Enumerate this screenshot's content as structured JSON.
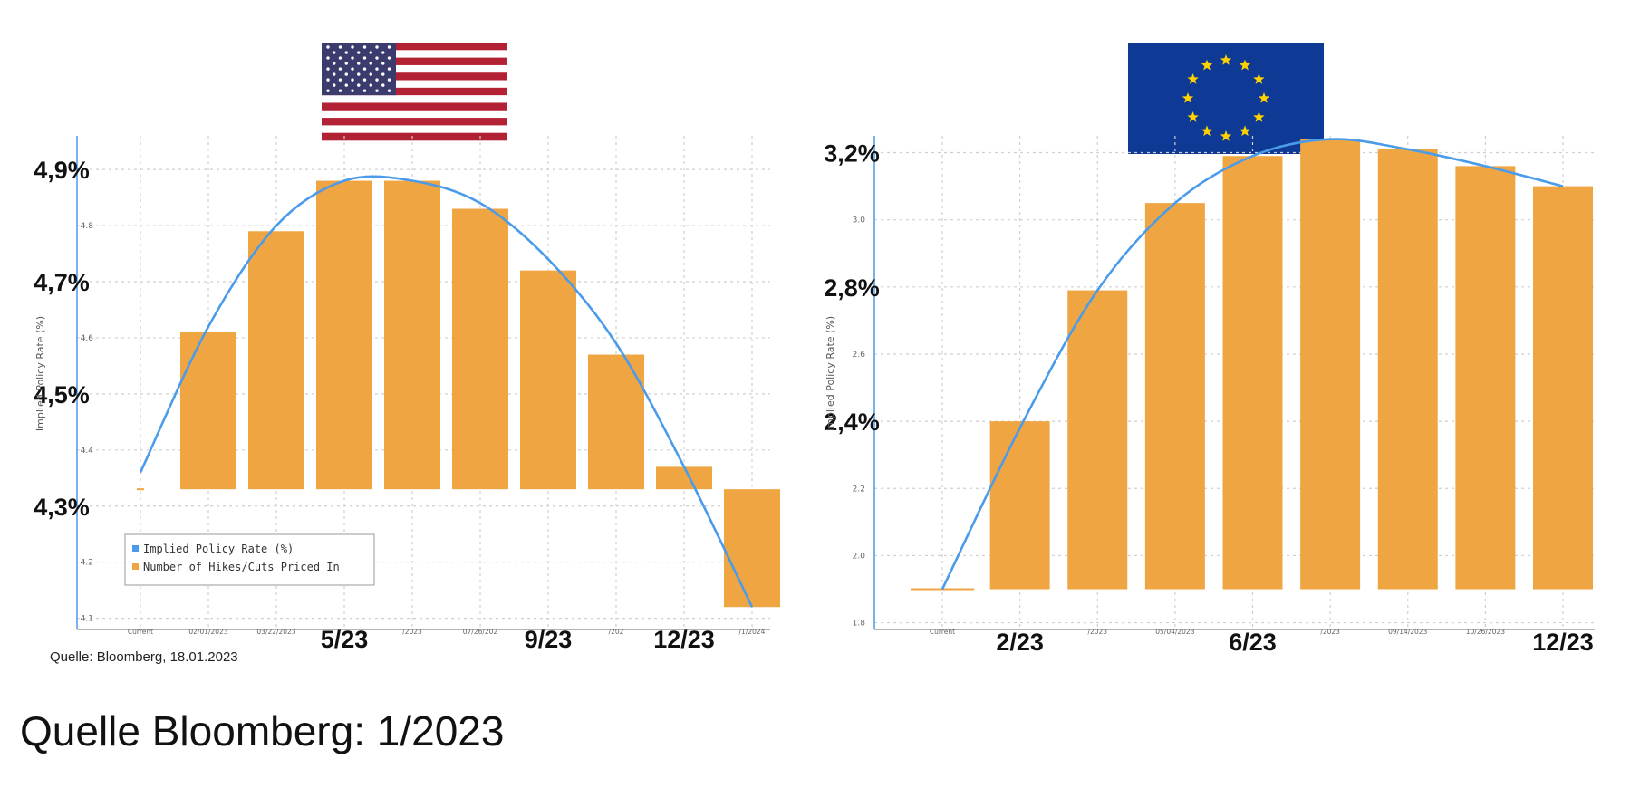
{
  "caption": "Quelle Bloomberg: 1/2023",
  "colors": {
    "bar": "#F0A543",
    "line": "#4A9BEA",
    "grid": "#cfcfcf",
    "axis": "#4A9BEA"
  },
  "chart_data": [
    {
      "type": "bar",
      "flag": "us-flag-icon",
      "source": "Quelle: Bloomberg, 18.01.2023",
      "ylabel": "Implied Policy Rate (%)",
      "ylim": [
        4.08,
        4.96
      ],
      "yticks_small": [
        "4.8",
        "4.6",
        "4.4",
        "4.2",
        "4.1"
      ],
      "yticks_big": [
        "4,9%",
        "4,7%",
        "4,5%",
        "4,3%"
      ],
      "categories": [
        "Current",
        "02/01/2023",
        "03/22/2023",
        "5/23",
        "/2023",
        "07/26/202",
        "9/23",
        "/202",
        "12/23",
        "/1/2024"
      ],
      "categories_big": [
        "5/23",
        "9/23",
        "12/23"
      ],
      "bar_base": 4.33,
      "bars": [
        null,
        4.61,
        4.79,
        4.88,
        4.88,
        4.83,
        4.72,
        4.57,
        4.37,
        4.12
      ],
      "line": [
        4.36,
        4.62,
        4.8,
        4.88,
        4.88,
        4.84,
        4.74,
        4.59,
        4.37,
        4.12
      ],
      "legend": [
        "Implied Policy Rate (%)",
        "Number of Hikes/Cuts Priced In"
      ]
    },
    {
      "type": "bar",
      "flag": "eu-flag-icon",
      "ylabel": "Implied Policy Rate (%)",
      "ylim": [
        1.78,
        3.25
      ],
      "yticks_small": [
        "3.0",
        "2.6",
        "2.2",
        "2.0",
        "1.8"
      ],
      "yticks_big": [
        "3,2%",
        "2,8%",
        "2,4%"
      ],
      "categories": [
        "Current",
        "2/23",
        "/2023",
        "05/04/2023",
        "6/23",
        "/2023",
        "09/14/2023",
        "10/26/2023",
        "12/23"
      ],
      "categories_big": [
        "2/23",
        "6/23",
        "12/23"
      ],
      "bar_base": 1.9,
      "bars": [
        null,
        2.4,
        2.79,
        3.05,
        3.19,
        3.24,
        3.21,
        3.16,
        3.1
      ],
      "line": [
        1.9,
        2.38,
        2.79,
        3.05,
        3.19,
        3.24,
        3.21,
        3.16,
        3.1
      ]
    }
  ]
}
